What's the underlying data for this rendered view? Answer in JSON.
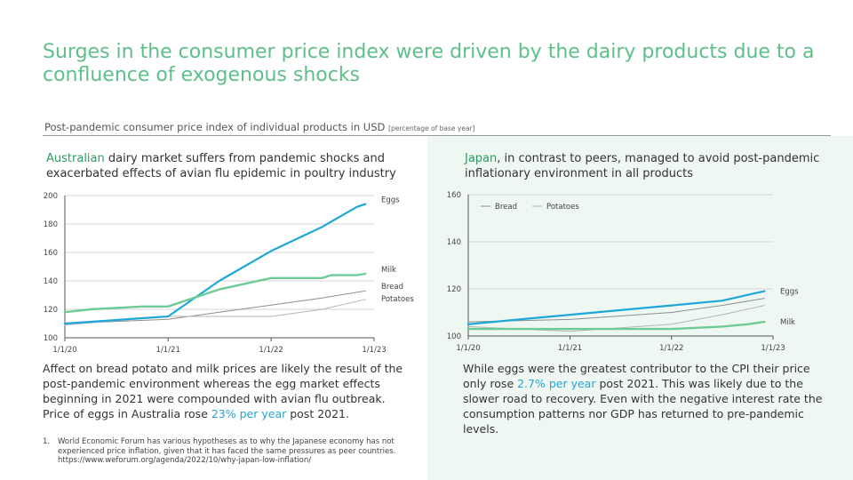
{
  "title": "Surges in the consumer price index were driven by the dairy products due to a confluence of exogenous shocks",
  "subtitle": {
    "main": "Post-pandemic consumer price index of individual products in USD",
    "note": "[percentage of base year]"
  },
  "left": {
    "heading_highlight": "Australian",
    "heading_rest": " dairy market suffers from pandemic shocks and exacerbated effects of avian flu epidemic in poultry industry",
    "body_before": "Affect on bread potato and milk prices are likely the result of the post-pandemic environment whereas the egg market effects beginning in 2021 were compounded with avian flu outbreak. Price of eggs in Australia rose ",
    "body_highlight": "23% per year",
    "body_after": " post 2021."
  },
  "right": {
    "heading_highlight": "Japan",
    "heading_rest": ", in contrast to peers, managed to avoid post-pandemic inflationary environment in all products",
    "body_before": "While eggs were the greatest contributor to the CPI their price only rose ",
    "body_highlight": "2.7% per year",
    "body_after": " post 2021. This was likely due to the slower road to recovery. Even with the negative interest rate the consumption patterns nor GDP has returned to pre-pandemic levels."
  },
  "footnote": {
    "number": "1.",
    "text": "World Economic Forum has various hypotheses as to why the Japanese economy has not experienced price inflation, given that it has faced the same pressures as peer countries. https://www.weforum.org/agenda/2022/10/why-japan-low-inflation/"
  },
  "colors": {
    "eggs": "#1ea8d8",
    "milk": "#6fcb95",
    "bread": "#8e8e8e",
    "potatoes": "#b5b5b5",
    "title": "#5fbf8a"
  },
  "chart_data": [
    {
      "type": "line",
      "x": [
        "1/1/20",
        "1/1/21",
        "1/1/22",
        "1/1/23"
      ],
      "xlim": [
        "1/1/20",
        "1/1/23"
      ],
      "ylim": [
        100,
        200
      ],
      "yticks": [
        100,
        120,
        140,
        160,
        180,
        200
      ],
      "grid": true,
      "series": [
        {
          "name": "Eggs",
          "color": "#1ea8d8",
          "width": 2.2,
          "points": [
            [
              "1/1/20",
              110
            ],
            [
              "1/1/21",
              115
            ],
            [
              "7/1/21",
              140
            ],
            [
              "1/1/22",
              161
            ],
            [
              "7/1/22",
              178
            ],
            [
              "11/1/22",
              192
            ],
            [
              "12/1/22",
              194
            ]
          ]
        },
        {
          "name": "Milk",
          "color": "#6fcb95",
          "width": 2.4,
          "points": [
            [
              "1/1/20",
              118
            ],
            [
              "4/1/20",
              120
            ],
            [
              "7/1/20",
              121
            ],
            [
              "10/1/20",
              122
            ],
            [
              "1/1/21",
              122
            ],
            [
              "4/1/21",
              128
            ],
            [
              "7/1/21",
              134
            ],
            [
              "10/1/21",
              138
            ],
            [
              "1/1/22",
              142
            ],
            [
              "7/1/22",
              142
            ],
            [
              "8/1/22",
              144
            ],
            [
              "11/1/22",
              144
            ],
            [
              "12/1/22",
              145
            ]
          ]
        },
        {
          "name": "Bread",
          "color": "#8e8e8e",
          "width": 1,
          "points": [
            [
              "1/1/20",
              110
            ],
            [
              "1/1/21",
              113
            ],
            [
              "7/1/21",
              118
            ],
            [
              "1/1/22",
              123
            ],
            [
              "7/1/22",
              128
            ],
            [
              "12/1/22",
              133
            ]
          ]
        },
        {
          "name": "Potatoes",
          "color": "#b5b5b5",
          "width": 1,
          "points": [
            [
              "1/1/20",
              109
            ],
            [
              "7/1/20",
              112
            ],
            [
              "1/1/21",
              115
            ],
            [
              "1/1/22",
              115
            ],
            [
              "7/1/22",
              120
            ],
            [
              "12/1/22",
              127
            ]
          ]
        }
      ]
    },
    {
      "type": "line",
      "x": [
        "1/1/20",
        "1/1/21",
        "1/1/22",
        "1/1/23"
      ],
      "xlim": [
        "1/1/20",
        "1/1/23"
      ],
      "ylim": [
        100,
        160
      ],
      "yticks": [
        100,
        120,
        140,
        160
      ],
      "grid": true,
      "legend": {
        "placement": "top-left",
        "items": [
          "Bread",
          "Potatoes"
        ]
      },
      "series": [
        {
          "name": "Eggs",
          "color": "#1ea8d8",
          "width": 2.2,
          "points": [
            [
              "1/1/20",
              105
            ],
            [
              "7/1/20",
              107
            ],
            [
              "1/1/21",
              109
            ],
            [
              "7/1/21",
              111
            ],
            [
              "1/1/22",
              113
            ],
            [
              "7/1/22",
              115
            ],
            [
              "12/1/22",
              119
            ]
          ]
        },
        {
          "name": "Milk",
          "color": "#6fcb95",
          "width": 2.4,
          "points": [
            [
              "1/1/20",
              103
            ],
            [
              "1/1/22",
              103
            ],
            [
              "7/1/22",
              104
            ],
            [
              "10/1/22",
              105
            ],
            [
              "12/1/22",
              106
            ]
          ]
        },
        {
          "name": "Bread",
          "color": "#8e8e8e",
          "width": 1,
          "points": [
            [
              "1/1/20",
              106
            ],
            [
              "1/1/21",
              107
            ],
            [
              "1/1/22",
              110
            ],
            [
              "7/1/22",
              113
            ],
            [
              "12/1/22",
              116
            ]
          ]
        },
        {
          "name": "Potatoes",
          "color": "#b5b5b5",
          "width": 1,
          "points": [
            [
              "1/1/20",
              104
            ],
            [
              "7/1/20",
              103
            ],
            [
              "1/1/21",
              102
            ],
            [
              "1/1/22",
              105
            ],
            [
              "7/1/22",
              109
            ],
            [
              "12/1/22",
              113
            ]
          ]
        }
      ]
    }
  ]
}
